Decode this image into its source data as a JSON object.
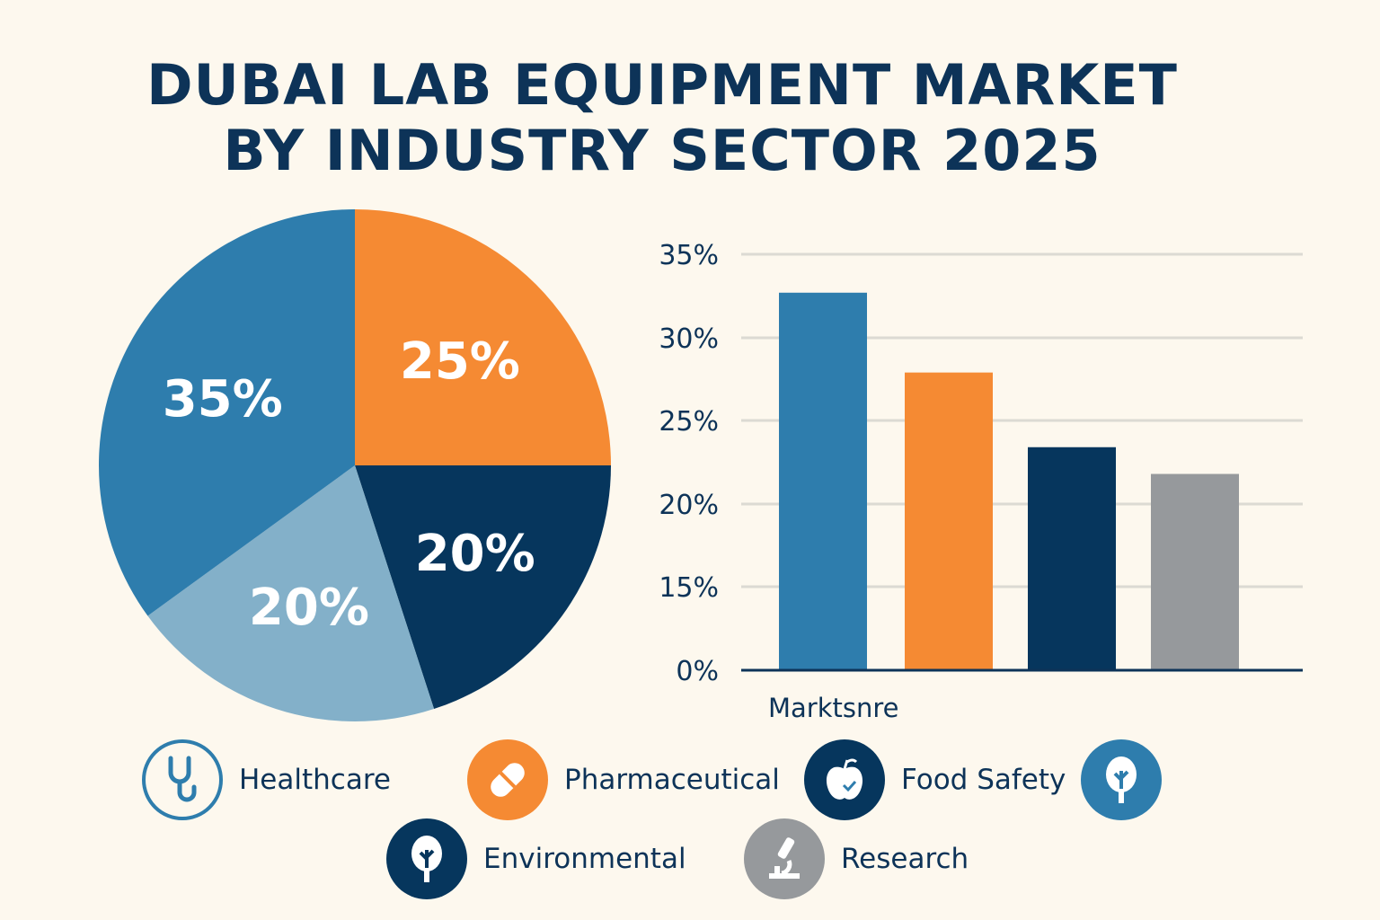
{
  "title": {
    "line1": "DUBAI LAB EQUIPMENT MARKET",
    "line2": "BY INDUSTRY SECTOR 2025"
  },
  "chart_data": [
    {
      "type": "pie",
      "slices": [
        {
          "label": "25%",
          "value": 25,
          "color": "#f58a33"
        },
        {
          "label": "20%",
          "value": 20,
          "color": "#06365d"
        },
        {
          "label": "20%",
          "value": 20,
          "color": "#83b0c9"
        },
        {
          "label": "35%",
          "value": 35,
          "color": "#2e7dad"
        }
      ]
    },
    {
      "type": "bar",
      "xlabel": "Marktsnre",
      "yticks": [
        0,
        15,
        20,
        25,
        30,
        35
      ],
      "ytick_labels": [
        "0%",
        "15%",
        "20%",
        "25%",
        "30%",
        "35%"
      ],
      "values": [
        32.7,
        27.9,
        23.4,
        21.8
      ],
      "colors": [
        "#2e7dad",
        "#f58a33",
        "#06365d",
        "#96999c"
      ],
      "grid": true
    }
  ],
  "legend": [
    {
      "label": "Healthcare",
      "icon": "stethoscope-icon",
      "color": "#2e7dad"
    },
    {
      "label": "Pharmaceutical",
      "icon": "pill-icon",
      "color": "#f58a33"
    },
    {
      "label": "Food Safety",
      "icon": "apple-icon",
      "color": "#06365d"
    },
    {
      "label": "",
      "icon": "tree-icon",
      "color": "#2e7dad"
    },
    {
      "label": "Environmental",
      "icon": "tree-icon",
      "color": "#06365d"
    },
    {
      "label": "Research",
      "icon": "microscope-icon",
      "color": "#96999c"
    }
  ]
}
